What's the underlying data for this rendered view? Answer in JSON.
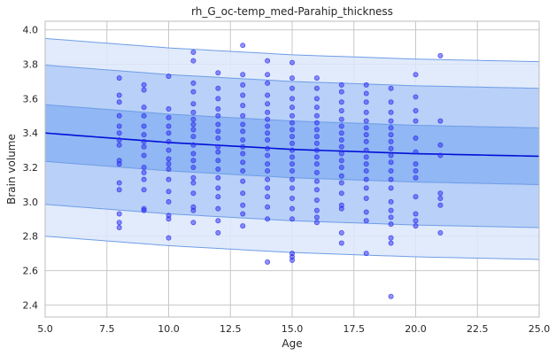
{
  "chart_data": {
    "type": "scatter",
    "title": "rh_G_oc-temp_med-Parahip_thickness",
    "xlabel": "Age",
    "ylabel": "Brain volume",
    "xlim": [
      5.0,
      25.0
    ],
    "ylim": [
      2.33,
      4.05
    ],
    "xticks": [
      "5.0",
      "7.5",
      "10.0",
      "12.5",
      "15.0",
      "17.5",
      "20.0",
      "22.5",
      "25.0"
    ],
    "yticks": [
      "2.4",
      "2.6",
      "2.8",
      "3.0",
      "3.2",
      "3.4",
      "3.6",
      "3.8",
      "4.0"
    ],
    "grid": true,
    "colors": {
      "band_outer": "#dce8fb",
      "band_middle": "#b5cdf7",
      "band_inner": "#8db4f3",
      "band_edge": "#6f9de6",
      "trend_line": "#0010d8",
      "points": "#2a2af0",
      "grid": "#c8c8c8",
      "frame": "#bdbdbd"
    },
    "trend": {
      "x": [
        5,
        10,
        15,
        20,
        25
      ],
      "mean": [
        3.4,
        3.345,
        3.305,
        3.28,
        3.265
      ],
      "band_inner": {
        "upper": [
          3.565,
          3.51,
          3.47,
          3.445,
          3.43
        ],
        "lower": [
          3.235,
          3.18,
          3.14,
          3.115,
          3.1
        ]
      },
      "band_middle": {
        "upper": [
          3.795,
          3.74,
          3.7,
          3.675,
          3.66
        ],
        "lower": [
          2.985,
          2.93,
          2.89,
          2.865,
          2.85
        ]
      },
      "band_outer": {
        "upper": [
          3.95,
          3.895,
          3.855,
          3.83,
          3.815
        ],
        "lower": [
          2.8,
          2.745,
          2.705,
          2.68,
          2.665
        ]
      }
    },
    "series": [
      {
        "points": [
          [
            8,
            3.72
          ],
          [
            8,
            3.62
          ],
          [
            8,
            3.58
          ],
          [
            8,
            3.5
          ],
          [
            8,
            3.44
          ],
          [
            8,
            3.4
          ],
          [
            8,
            3.36
          ],
          [
            8,
            3.33
          ],
          [
            8,
            3.24
          ],
          [
            8,
            3.22
          ],
          [
            8,
            3.11
          ],
          [
            8,
            3.07
          ],
          [
            8,
            2.93
          ],
          [
            8,
            2.88
          ],
          [
            8,
            2.85
          ],
          [
            9,
            3.68
          ],
          [
            9,
            3.65
          ],
          [
            9,
            3.55
          ],
          [
            9,
            3.5
          ],
          [
            9,
            3.44
          ],
          [
            9,
            3.39
          ],
          [
            9,
            3.35
          ],
          [
            9,
            3.32
          ],
          [
            9,
            3.27
          ],
          [
            9,
            3.2
          ],
          [
            9,
            3.17
          ],
          [
            9,
            3.13
          ],
          [
            9,
            3.07
          ],
          [
            9,
            2.96
          ],
          [
            9,
            2.95
          ],
          [
            10,
            3.73
          ],
          [
            10,
            3.54
          ],
          [
            10,
            3.49
          ],
          [
            10,
            3.44
          ],
          [
            10,
            3.4
          ],
          [
            10,
            3.35
          ],
          [
            10,
            3.3
          ],
          [
            10,
            3.25
          ],
          [
            10,
            3.22
          ],
          [
            10,
            3.19
          ],
          [
            10,
            3.13
          ],
          [
            10,
            3.06
          ],
          [
            10,
            3.0
          ],
          [
            10,
            2.92
          ],
          [
            10,
            2.9
          ],
          [
            10,
            2.79
          ],
          [
            11,
            3.87
          ],
          [
            11,
            3.82
          ],
          [
            11,
            3.69
          ],
          [
            11,
            3.64
          ],
          [
            11,
            3.57
          ],
          [
            11,
            3.52
          ],
          [
            11,
            3.48
          ],
          [
            11,
            3.45
          ],
          [
            11,
            3.42
          ],
          [
            11,
            3.38
          ],
          [
            11,
            3.33
          ],
          [
            11,
            3.28
          ],
          [
            11,
            3.24
          ],
          [
            11,
            3.2
          ],
          [
            11,
            3.14
          ],
          [
            11,
            3.11
          ],
          [
            11,
            3.05
          ],
          [
            11,
            2.97
          ],
          [
            11,
            2.95
          ],
          [
            11,
            2.88
          ],
          [
            12,
            3.75
          ],
          [
            12,
            3.66
          ],
          [
            12,
            3.6
          ],
          [
            12,
            3.54
          ],
          [
            12,
            3.5
          ],
          [
            12,
            3.45
          ],
          [
            12,
            3.41
          ],
          [
            12,
            3.37
          ],
          [
            12,
            3.32
          ],
          [
            12,
            3.29
          ],
          [
            12,
            3.24
          ],
          [
            12,
            3.19
          ],
          [
            12,
            3.14
          ],
          [
            12,
            3.08
          ],
          [
            12,
            3.03
          ],
          [
            12,
            2.96
          ],
          [
            12,
            2.89
          ],
          [
            12,
            2.82
          ],
          [
            13,
            3.91
          ],
          [
            13,
            3.74
          ],
          [
            13,
            3.68
          ],
          [
            13,
            3.62
          ],
          [
            13,
            3.56
          ],
          [
            13,
            3.5
          ],
          [
            13,
            3.45
          ],
          [
            13,
            3.41
          ],
          [
            13,
            3.36
          ],
          [
            13,
            3.32
          ],
          [
            13,
            3.28
          ],
          [
            13,
            3.23
          ],
          [
            13,
            3.18
          ],
          [
            13,
            3.12
          ],
          [
            13,
            3.05
          ],
          [
            13,
            2.98
          ],
          [
            13,
            2.93
          ],
          [
            13,
            2.86
          ],
          [
            14,
            3.82
          ],
          [
            14,
            3.74
          ],
          [
            14,
            3.69
          ],
          [
            14,
            3.62
          ],
          [
            14,
            3.57
          ],
          [
            14,
            3.52
          ],
          [
            14,
            3.48
          ],
          [
            14,
            3.44
          ],
          [
            14,
            3.4
          ],
          [
            14,
            3.36
          ],
          [
            14,
            3.31
          ],
          [
            14,
            3.27
          ],
          [
            14,
            3.22
          ],
          [
            14,
            3.18
          ],
          [
            14,
            3.13
          ],
          [
            14,
            3.08
          ],
          [
            14,
            3.03
          ],
          [
            14,
            2.97
          ],
          [
            14,
            2.9
          ],
          [
            14,
            2.65
          ],
          [
            15,
            3.81
          ],
          [
            15,
            3.72
          ],
          [
            15,
            3.66
          ],
          [
            15,
            3.6
          ],
          [
            15,
            3.55
          ],
          [
            15,
            3.5
          ],
          [
            15,
            3.46
          ],
          [
            15,
            3.42
          ],
          [
            15,
            3.38
          ],
          [
            15,
            3.34
          ],
          [
            15,
            3.3
          ],
          [
            15,
            3.26
          ],
          [
            15,
            3.22
          ],
          [
            15,
            3.18
          ],
          [
            15,
            3.13
          ],
          [
            15,
            3.08
          ],
          [
            15,
            3.02
          ],
          [
            15,
            2.96
          ],
          [
            15,
            2.9
          ],
          [
            15,
            2.7
          ],
          [
            15,
            2.68
          ],
          [
            15,
            2.66
          ],
          [
            16,
            3.72
          ],
          [
            16,
            3.66
          ],
          [
            16,
            3.6
          ],
          [
            16,
            3.55
          ],
          [
            16,
            3.5
          ],
          [
            16,
            3.46
          ],
          [
            16,
            3.42
          ],
          [
            16,
            3.38
          ],
          [
            16,
            3.34
          ],
          [
            16,
            3.3
          ],
          [
            16,
            3.26
          ],
          [
            16,
            3.22
          ],
          [
            16,
            3.17
          ],
          [
            16,
            3.12
          ],
          [
            16,
            3.07
          ],
          [
            16,
            3.01
          ],
          [
            16,
            2.95
          ],
          [
            16,
            2.91
          ],
          [
            16,
            2.88
          ],
          [
            17,
            3.68
          ],
          [
            17,
            3.64
          ],
          [
            17,
            3.58
          ],
          [
            17,
            3.53
          ],
          [
            17,
            3.48
          ],
          [
            17,
            3.44
          ],
          [
            17,
            3.4
          ],
          [
            17,
            3.36
          ],
          [
            17,
            3.32
          ],
          [
            17,
            3.28
          ],
          [
            17,
            3.24
          ],
          [
            17,
            3.2
          ],
          [
            17,
            3.15
          ],
          [
            17,
            3.11
          ],
          [
            17,
            3.05
          ],
          [
            17,
            2.98
          ],
          [
            17,
            2.96
          ],
          [
            17,
            2.82
          ],
          [
            17,
            2.76
          ],
          [
            18,
            3.68
          ],
          [
            18,
            3.63
          ],
          [
            18,
            3.58
          ],
          [
            18,
            3.52
          ],
          [
            18,
            3.47
          ],
          [
            18,
            3.43
          ],
          [
            18,
            3.39
          ],
          [
            18,
            3.35
          ],
          [
            18,
            3.3
          ],
          [
            18,
            3.26
          ],
          [
            18,
            3.22
          ],
          [
            18,
            3.18
          ],
          [
            18,
            3.13
          ],
          [
            18,
            3.08
          ],
          [
            18,
            3.02
          ],
          [
            18,
            2.94
          ],
          [
            18,
            2.89
          ],
          [
            18,
            2.7
          ],
          [
            19,
            3.66
          ],
          [
            19,
            3.58
          ],
          [
            19,
            3.52
          ],
          [
            19,
            3.47
          ],
          [
            19,
            3.43
          ],
          [
            19,
            3.39
          ],
          [
            19,
            3.35
          ],
          [
            19,
            3.31
          ],
          [
            19,
            3.27
          ],
          [
            19,
            3.23
          ],
          [
            19,
            3.18
          ],
          [
            19,
            3.13
          ],
          [
            19,
            3.08
          ],
          [
            19,
            3.0
          ],
          [
            19,
            2.95
          ],
          [
            19,
            2.91
          ],
          [
            19,
            2.87
          ],
          [
            19,
            2.79
          ],
          [
            19,
            2.76
          ],
          [
            19,
            2.45
          ],
          [
            20,
            3.74
          ],
          [
            20,
            3.61
          ],
          [
            20,
            3.53
          ],
          [
            20,
            3.47
          ],
          [
            20,
            3.37
          ],
          [
            20,
            3.29
          ],
          [
            20,
            3.22
          ],
          [
            20,
            3.18
          ],
          [
            20,
            3.14
          ],
          [
            20,
            3.03
          ],
          [
            20,
            2.93
          ],
          [
            20,
            2.89
          ],
          [
            20,
            2.86
          ],
          [
            21,
            3.85
          ],
          [
            21,
            3.47
          ],
          [
            21,
            3.33
          ],
          [
            21,
            3.27
          ],
          [
            21,
            3.05
          ],
          [
            21,
            3.02
          ],
          [
            21,
            2.98
          ],
          [
            21,
            2.82
          ]
        ]
      }
    ]
  }
}
